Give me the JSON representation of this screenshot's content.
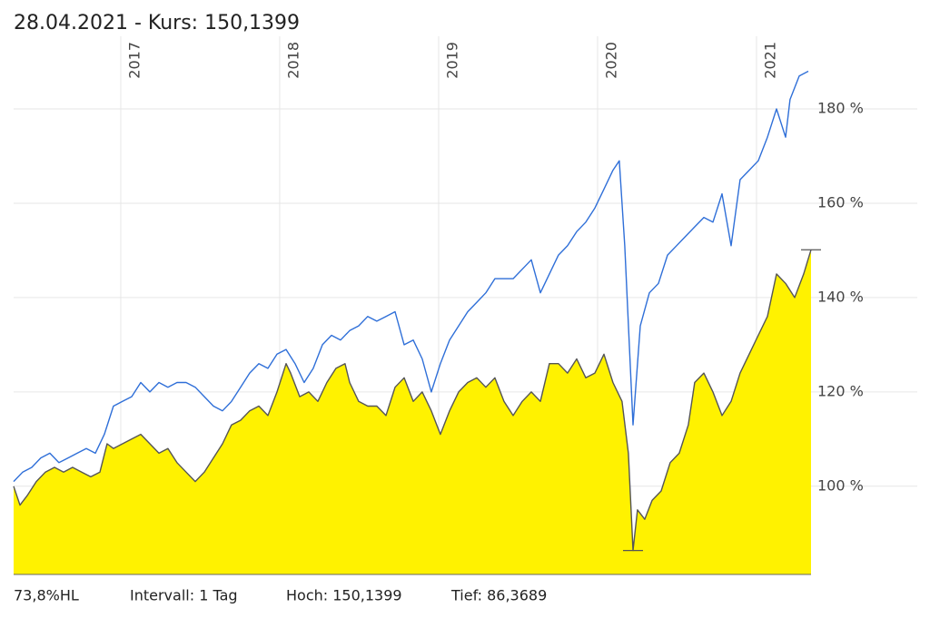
{
  "chart_data": {
    "type": "line",
    "title": "28.04.2021  -  Kurs: 150,1399",
    "footer": [
      "73,8%HL",
      "Intervall: 1 Tag"
    ],
    "high": {
      "value": 150.1399,
      "label": "Hoch: 150,1399",
      "x": 2021.343
    },
    "low": {
      "value": 86.3689,
      "label": "Tief: 86,3689",
      "x": 2020.223
    },
    "xlim": [
      2016.326,
      2021.343
    ],
    "xticks": [
      2017,
      2018,
      2019,
      2020,
      2021
    ],
    "ylim": [
      81.3,
      195.4
    ],
    "yticks": [
      {
        "value": 100,
        "label": "100 %"
      },
      {
        "value": 120,
        "label": "120 %"
      },
      {
        "value": 140,
        "label": "140 %"
      },
      {
        "value": 160,
        "label": "160 %"
      },
      {
        "value": 180,
        "label": "180 %"
      }
    ],
    "grid": true,
    "series": [
      {
        "fill": "#fff200",
        "color": "#555555",
        "x": [
          2016.326,
          2016.366,
          2016.411,
          2016.469,
          2016.526,
          2016.583,
          2016.64,
          2016.697,
          2016.754,
          2016.811,
          2016.869,
          2016.914,
          2016.954,
          2017.011,
          2017.069,
          2017.126,
          2017.183,
          2017.24,
          2017.297,
          2017.354,
          2017.411,
          2017.469,
          2017.526,
          2017.583,
          2017.64,
          2017.697,
          2017.754,
          2017.811,
          2017.869,
          2017.926,
          2017.983,
          2018.04,
          2018.069,
          2018.126,
          2018.183,
          2018.24,
          2018.297,
          2018.354,
          2018.411,
          2018.44,
          2018.497,
          2018.554,
          2018.611,
          2018.669,
          2018.726,
          2018.783,
          2018.84,
          2018.897,
          2018.954,
          2019.011,
          2019.069,
          2019.126,
          2019.183,
          2019.24,
          2019.297,
          2019.354,
          2019.411,
          2019.469,
          2019.526,
          2019.583,
          2019.64,
          2019.697,
          2019.754,
          2019.811,
          2019.869,
          2019.926,
          2019.983,
          2020.04,
          2020.097,
          2020.154,
          2020.194,
          2020.223,
          2020.251,
          2020.297,
          2020.343,
          2020.4,
          2020.457,
          2020.514,
          2020.571,
          2020.611,
          2020.669,
          2020.726,
          2020.783,
          2020.84,
          2020.897,
          2020.954,
          2021.011,
          2021.069,
          2021.126,
          2021.183,
          2021.24,
          2021.297,
          2021.343
        ],
        "values": [
          100,
          96,
          98,
          101,
          103,
          104,
          103,
          104,
          103,
          102,
          103,
          109,
          108,
          109,
          110,
          111,
          109,
          107,
          108,
          105,
          103,
          101,
          103,
          106,
          109,
          113,
          114,
          116,
          117,
          115,
          120,
          126,
          124,
          119,
          120,
          118,
          122,
          125,
          126,
          122,
          118,
          117,
          117,
          115,
          121,
          123,
          118,
          120,
          116,
          111,
          116,
          120,
          122,
          123,
          121,
          123,
          118,
          115,
          118,
          120,
          118,
          126,
          126,
          124,
          127,
          123,
          124,
          128,
          122,
          118,
          107,
          86.4,
          95,
          93,
          97,
          99,
          105,
          107,
          113,
          122,
          124,
          120,
          115,
          118,
          124,
          128,
          132,
          136,
          145,
          143,
          140,
          145,
          150.1399
        ]
      },
      {
        "color": "#2f6fd8",
        "x": [
          2016.326,
          2016.383,
          2016.44,
          2016.497,
          2016.554,
          2016.611,
          2016.669,
          2016.726,
          2016.783,
          2016.84,
          2016.897,
          2016.954,
          2017.011,
          2017.069,
          2017.126,
          2017.183,
          2017.24,
          2017.297,
          2017.354,
          2017.411,
          2017.469,
          2017.526,
          2017.583,
          2017.64,
          2017.697,
          2017.754,
          2017.811,
          2017.869,
          2017.926,
          2017.983,
          2018.04,
          2018.097,
          2018.154,
          2018.211,
          2018.269,
          2018.326,
          2018.383,
          2018.44,
          2018.497,
          2018.554,
          2018.611,
          2018.669,
          2018.726,
          2018.783,
          2018.84,
          2018.897,
          2018.954,
          2019.011,
          2019.069,
          2019.126,
          2019.183,
          2019.24,
          2019.297,
          2019.354,
          2019.411,
          2019.469,
          2019.526,
          2019.583,
          2019.64,
          2019.697,
          2019.754,
          2019.811,
          2019.869,
          2019.926,
          2019.983,
          2020.04,
          2020.097,
          2020.137,
          2020.171,
          2020.223,
          2020.269,
          2020.326,
          2020.383,
          2020.44,
          2020.497,
          2020.554,
          2020.611,
          2020.669,
          2020.726,
          2020.783,
          2020.84,
          2020.897,
          2020.954,
          2021.011,
          2021.069,
          2021.126,
          2021.183,
          2021.211,
          2021.269,
          2021.326
        ],
        "values": [
          101,
          103,
          104,
          106,
          107,
          105,
          106,
          107,
          108,
          107,
          111,
          117,
          118,
          119,
          122,
          120,
          122,
          121,
          122,
          122,
          121,
          119,
          117,
          116,
          118,
          121,
          124,
          126,
          125,
          128,
          129,
          126,
          122,
          125,
          130,
          132,
          131,
          133,
          134,
          136,
          135,
          136,
          137,
          130,
          131,
          127,
          120,
          126,
          131,
          134,
          137,
          139,
          141,
          144,
          144,
          144,
          146,
          148,
          141,
          145,
          149,
          151,
          154,
          156,
          159,
          163,
          167,
          169,
          151,
          113,
          134,
          141,
          143,
          149,
          151,
          153,
          155,
          157,
          156,
          162,
          151,
          165,
          167,
          169,
          174,
          180,
          174,
          182,
          187,
          188
        ]
      }
    ]
  }
}
